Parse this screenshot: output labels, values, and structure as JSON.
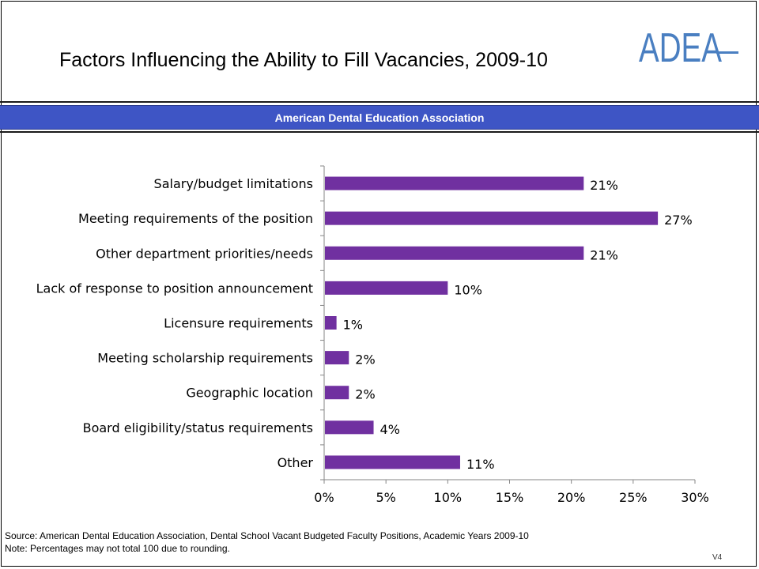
{
  "title": "Factors Influencing the Ability to Fill Vacancies, 2009-10",
  "logo_text": "ADEA",
  "banner": "American Dental Education Association",
  "colors": {
    "bar": "#7030a0",
    "banner": "#3e55c5",
    "logo": "#4a7fc1"
  },
  "chart_data": {
    "type": "bar",
    "orientation": "horizontal",
    "categories": [
      "Salary/budget limitations",
      "Meeting requirements of the position",
      "Other department priorities/needs",
      "Lack of response to position announcement",
      "Licensure requirements",
      "Meeting scholarship requirements",
      "Geographic location",
      "Board eligibility/status requirements",
      "Other"
    ],
    "values": [
      21,
      27,
      21,
      10,
      1,
      2,
      2,
      4,
      11
    ],
    "data_labels": [
      "21%",
      "27%",
      "21%",
      "10%",
      "1%",
      "2%",
      "2%",
      "4%",
      "11%"
    ],
    "xlim": [
      0,
      30
    ],
    "x_ticks": [
      0,
      5,
      10,
      15,
      20,
      25,
      30
    ],
    "x_tick_labels": [
      "0%",
      "5%",
      "10%",
      "15%",
      "20%",
      "25%",
      "30%"
    ],
    "title": "",
    "xlabel": "",
    "ylabel": "",
    "grid": false,
    "legend": "none"
  },
  "footer": {
    "source": "Source: American Dental Education Association, Dental School Vacant Budgeted Faculty Positions, Academic Years 2009-10",
    "note": "Note: Percentages may not total 100 due to rounding.",
    "version": "V4"
  }
}
